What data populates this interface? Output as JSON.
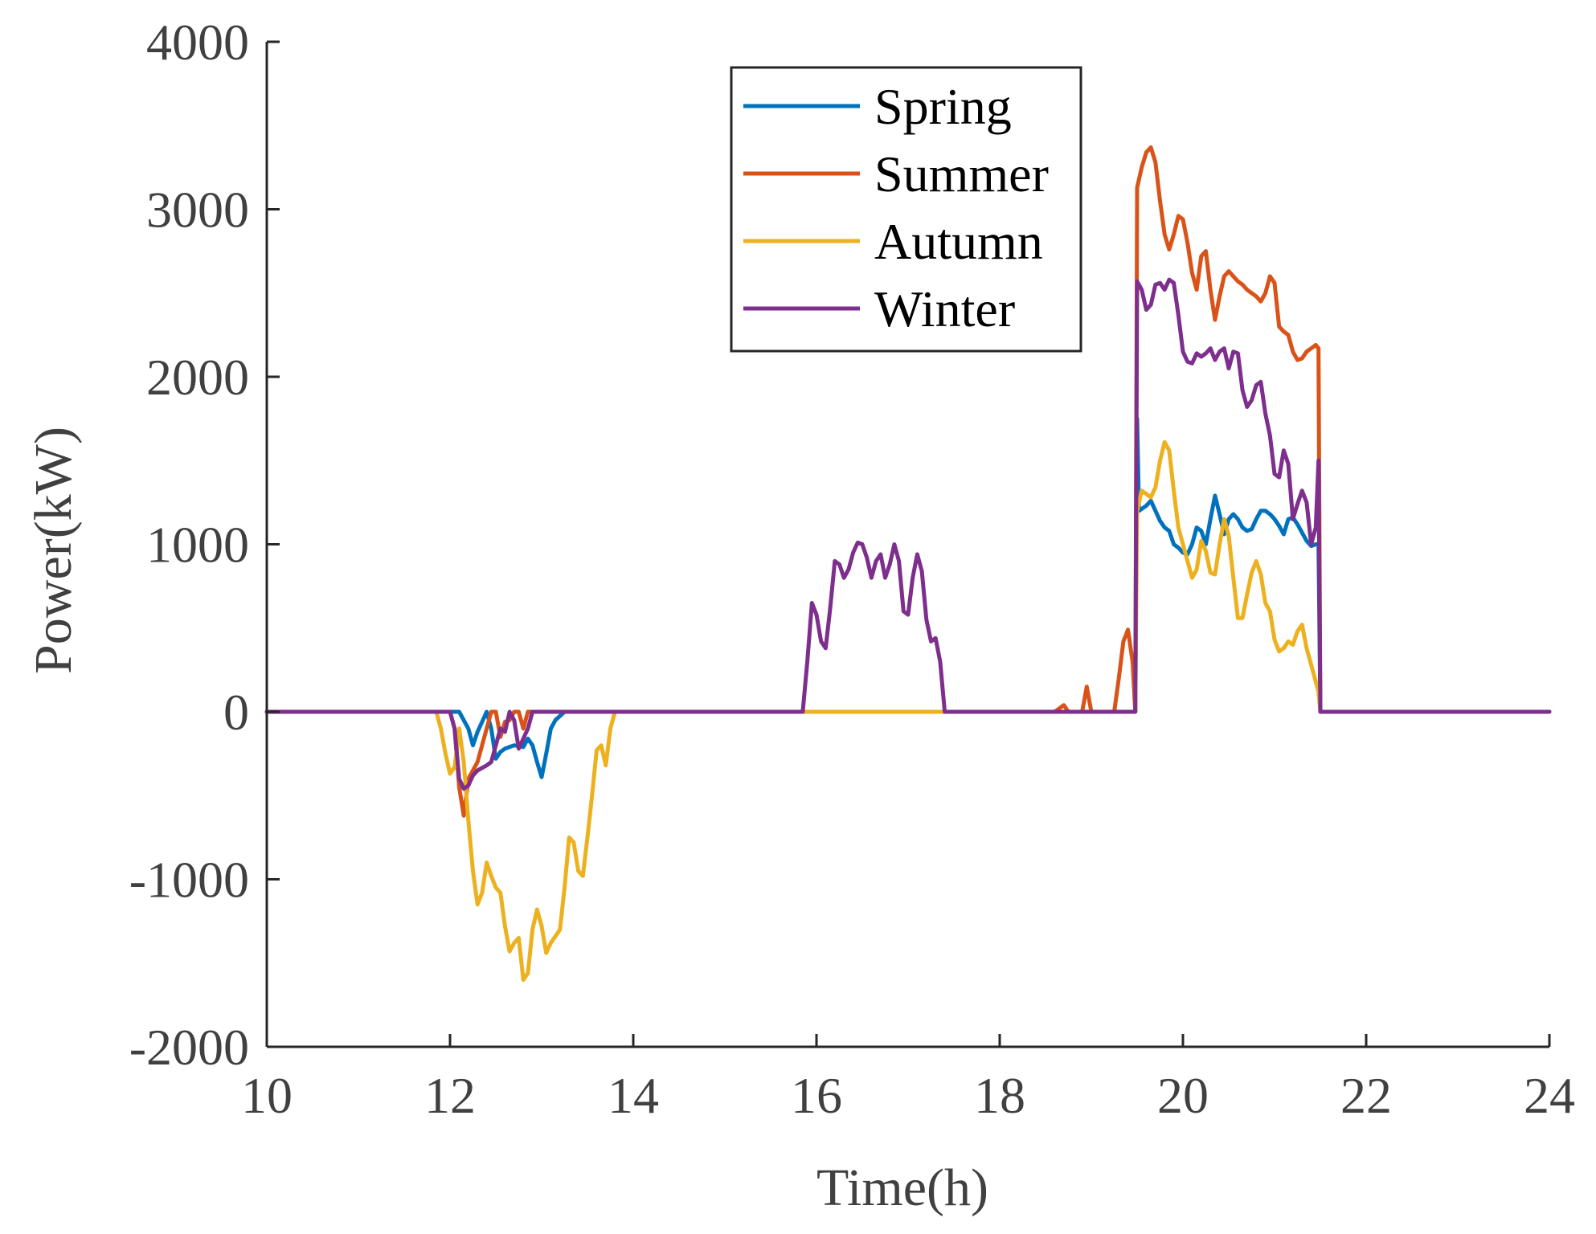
{
  "chart_data": {
    "type": "line",
    "xlabel": "Time(h)",
    "ylabel": "Power(kW)",
    "xlim": [
      10,
      24
    ],
    "ylim": [
      -2000,
      4000
    ],
    "xticks": [
      10,
      12,
      14,
      16,
      18,
      20,
      22,
      24
    ],
    "yticks": [
      -2000,
      -1000,
      0,
      1000,
      2000,
      3000,
      4000
    ],
    "grid": false,
    "legend_position": "top-right",
    "series": [
      {
        "name": "Spring",
        "color": "#0072BD",
        "points": [
          [
            10,
            0
          ],
          [
            12.0,
            0
          ],
          [
            12.1,
            0
          ],
          [
            12.2,
            -100
          ],
          [
            12.25,
            -200
          ],
          [
            12.3,
            -120
          ],
          [
            12.35,
            -60
          ],
          [
            12.4,
            0
          ],
          [
            12.45,
            -100
          ],
          [
            12.5,
            -280
          ],
          [
            12.55,
            -240
          ],
          [
            12.6,
            -220
          ],
          [
            12.7,
            -200
          ],
          [
            12.8,
            -210
          ],
          [
            12.85,
            -160
          ],
          [
            12.9,
            -200
          ],
          [
            12.95,
            -300
          ],
          [
            13.0,
            -390
          ],
          [
            13.05,
            -250
          ],
          [
            13.1,
            -100
          ],
          [
            13.15,
            -50
          ],
          [
            13.25,
            0
          ],
          [
            19.48,
            0
          ],
          [
            19.5,
            1750
          ],
          [
            19.52,
            1200
          ],
          [
            19.6,
            1230
          ],
          [
            19.65,
            1260
          ],
          [
            19.7,
            1200
          ],
          [
            19.75,
            1140
          ],
          [
            19.8,
            1100
          ],
          [
            19.85,
            1080
          ],
          [
            19.9,
            1000
          ],
          [
            19.95,
            980
          ],
          [
            20.0,
            950
          ],
          [
            20.05,
            940
          ],
          [
            20.1,
            1000
          ],
          [
            20.15,
            1100
          ],
          [
            20.2,
            1080
          ],
          [
            20.25,
            1000
          ],
          [
            20.3,
            1150
          ],
          [
            20.35,
            1290
          ],
          [
            20.4,
            1180
          ],
          [
            20.45,
            1060
          ],
          [
            20.5,
            1150
          ],
          [
            20.55,
            1180
          ],
          [
            20.6,
            1150
          ],
          [
            20.65,
            1100
          ],
          [
            20.7,
            1080
          ],
          [
            20.75,
            1090
          ],
          [
            20.8,
            1150
          ],
          [
            20.85,
            1200
          ],
          [
            20.9,
            1200
          ],
          [
            20.95,
            1180
          ],
          [
            21.0,
            1150
          ],
          [
            21.05,
            1110
          ],
          [
            21.1,
            1060
          ],
          [
            21.15,
            1150
          ],
          [
            21.2,
            1160
          ],
          [
            21.25,
            1120
          ],
          [
            21.3,
            1070
          ],
          [
            21.35,
            1020
          ],
          [
            21.4,
            990
          ],
          [
            21.45,
            1000
          ],
          [
            21.48,
            1000
          ],
          [
            21.5,
            0
          ],
          [
            24,
            0
          ]
        ]
      },
      {
        "name": "Summer",
        "color": "#D95319",
        "points": [
          [
            10,
            0
          ],
          [
            12.0,
            0
          ],
          [
            12.05,
            -100
          ],
          [
            12.1,
            -450
          ],
          [
            12.15,
            -620
          ],
          [
            12.2,
            -400
          ],
          [
            12.3,
            -300
          ],
          [
            12.4,
            -100
          ],
          [
            12.45,
            0
          ],
          [
            12.5,
            0
          ],
          [
            12.55,
            -150
          ],
          [
            12.6,
            -60
          ],
          [
            12.65,
            -50
          ],
          [
            12.7,
            0
          ],
          [
            12.75,
            0
          ],
          [
            12.8,
            -100
          ],
          [
            12.85,
            0
          ],
          [
            12.9,
            0
          ],
          [
            18.6,
            0
          ],
          [
            18.7,
            40
          ],
          [
            18.75,
            0
          ],
          [
            18.9,
            0
          ],
          [
            18.95,
            150
          ],
          [
            19.0,
            0
          ],
          [
            19.25,
            0
          ],
          [
            19.3,
            200
          ],
          [
            19.35,
            420
          ],
          [
            19.4,
            490
          ],
          [
            19.45,
            300
          ],
          [
            19.48,
            0
          ],
          [
            19.5,
            3130
          ],
          [
            19.55,
            3250
          ],
          [
            19.6,
            3340
          ],
          [
            19.65,
            3370
          ],
          [
            19.7,
            3280
          ],
          [
            19.75,
            3050
          ],
          [
            19.8,
            2850
          ],
          [
            19.85,
            2760
          ],
          [
            19.9,
            2850
          ],
          [
            19.95,
            2960
          ],
          [
            20.0,
            2940
          ],
          [
            20.05,
            2800
          ],
          [
            20.1,
            2620
          ],
          [
            20.15,
            2520
          ],
          [
            20.2,
            2720
          ],
          [
            20.25,
            2750
          ],
          [
            20.3,
            2520
          ],
          [
            20.35,
            2340
          ],
          [
            20.4,
            2480
          ],
          [
            20.45,
            2600
          ],
          [
            20.5,
            2630
          ],
          [
            20.55,
            2600
          ],
          [
            20.6,
            2570
          ],
          [
            20.65,
            2550
          ],
          [
            20.7,
            2520
          ],
          [
            20.75,
            2500
          ],
          [
            20.8,
            2480
          ],
          [
            20.85,
            2450
          ],
          [
            20.9,
            2500
          ],
          [
            20.95,
            2600
          ],
          [
            21.0,
            2560
          ],
          [
            21.05,
            2300
          ],
          [
            21.1,
            2270
          ],
          [
            21.15,
            2250
          ],
          [
            21.2,
            2150
          ],
          [
            21.25,
            2100
          ],
          [
            21.3,
            2110
          ],
          [
            21.35,
            2150
          ],
          [
            21.4,
            2170
          ],
          [
            21.45,
            2190
          ],
          [
            21.48,
            2170
          ],
          [
            21.5,
            0
          ],
          [
            24,
            0
          ]
        ]
      },
      {
        "name": "Autumn",
        "color": "#EDB120",
        "points": [
          [
            10,
            0
          ],
          [
            11.85,
            0
          ],
          [
            11.9,
            -100
          ],
          [
            11.95,
            -250
          ],
          [
            12.0,
            -370
          ],
          [
            12.05,
            -330
          ],
          [
            12.1,
            -100
          ],
          [
            12.15,
            -300
          ],
          [
            12.2,
            -650
          ],
          [
            12.25,
            -950
          ],
          [
            12.3,
            -1150
          ],
          [
            12.35,
            -1080
          ],
          [
            12.4,
            -900
          ],
          [
            12.45,
            -980
          ],
          [
            12.5,
            -1050
          ],
          [
            12.55,
            -1080
          ],
          [
            12.6,
            -1280
          ],
          [
            12.65,
            -1430
          ],
          [
            12.7,
            -1380
          ],
          [
            12.75,
            -1350
          ],
          [
            12.8,
            -1600
          ],
          [
            12.85,
            -1560
          ],
          [
            12.9,
            -1300
          ],
          [
            12.95,
            -1180
          ],
          [
            13.0,
            -1280
          ],
          [
            13.05,
            -1440
          ],
          [
            13.1,
            -1380
          ],
          [
            13.15,
            -1340
          ],
          [
            13.2,
            -1300
          ],
          [
            13.25,
            -1050
          ],
          [
            13.3,
            -750
          ],
          [
            13.35,
            -780
          ],
          [
            13.4,
            -950
          ],
          [
            13.45,
            -980
          ],
          [
            13.5,
            -750
          ],
          [
            13.55,
            -500
          ],
          [
            13.6,
            -230
          ],
          [
            13.65,
            -200
          ],
          [
            13.7,
            -320
          ],
          [
            13.75,
            -100
          ],
          [
            13.8,
            0
          ],
          [
            19.48,
            0
          ],
          [
            19.5,
            1200
          ],
          [
            19.55,
            1320
          ],
          [
            19.6,
            1300
          ],
          [
            19.65,
            1280
          ],
          [
            19.7,
            1340
          ],
          [
            19.75,
            1500
          ],
          [
            19.8,
            1610
          ],
          [
            19.85,
            1560
          ],
          [
            19.9,
            1320
          ],
          [
            19.95,
            1100
          ],
          [
            20.0,
            1000
          ],
          [
            20.05,
            900
          ],
          [
            20.1,
            800
          ],
          [
            20.15,
            850
          ],
          [
            20.2,
            1020
          ],
          [
            20.25,
            960
          ],
          [
            20.3,
            830
          ],
          [
            20.35,
            820
          ],
          [
            20.4,
            1000
          ],
          [
            20.45,
            1150
          ],
          [
            20.5,
            1050
          ],
          [
            20.55,
            800
          ],
          [
            20.6,
            560
          ],
          [
            20.65,
            560
          ],
          [
            20.7,
            700
          ],
          [
            20.75,
            830
          ],
          [
            20.8,
            900
          ],
          [
            20.85,
            820
          ],
          [
            20.9,
            650
          ],
          [
            20.95,
            600
          ],
          [
            21.0,
            430
          ],
          [
            21.05,
            360
          ],
          [
            21.1,
            380
          ],
          [
            21.15,
            420
          ],
          [
            21.2,
            400
          ],
          [
            21.25,
            480
          ],
          [
            21.3,
            520
          ],
          [
            21.35,
            380
          ],
          [
            21.4,
            280
          ],
          [
            21.45,
            180
          ],
          [
            21.48,
            120
          ],
          [
            21.5,
            0
          ],
          [
            24,
            0
          ]
        ]
      },
      {
        "name": "Winter",
        "color": "#7E2F8E",
        "points": [
          [
            10,
            0
          ],
          [
            12.0,
            0
          ],
          [
            12.05,
            -100
          ],
          [
            12.1,
            -400
          ],
          [
            12.15,
            -460
          ],
          [
            12.2,
            -440
          ],
          [
            12.25,
            -380
          ],
          [
            12.3,
            -350
          ],
          [
            12.4,
            -320
          ],
          [
            12.45,
            -300
          ],
          [
            12.5,
            -200
          ],
          [
            12.55,
            -100
          ],
          [
            12.6,
            -120
          ],
          [
            12.65,
            0
          ],
          [
            12.7,
            -50
          ],
          [
            12.75,
            -220
          ],
          [
            12.8,
            -160
          ],
          [
            12.85,
            -100
          ],
          [
            12.9,
            0
          ],
          [
            15.85,
            0
          ],
          [
            15.9,
            300
          ],
          [
            15.95,
            650
          ],
          [
            16.0,
            580
          ],
          [
            16.05,
            420
          ],
          [
            16.1,
            380
          ],
          [
            16.15,
            620
          ],
          [
            16.2,
            900
          ],
          [
            16.25,
            880
          ],
          [
            16.3,
            800
          ],
          [
            16.35,
            850
          ],
          [
            16.4,
            950
          ],
          [
            16.45,
            1010
          ],
          [
            16.5,
            1000
          ],
          [
            16.55,
            920
          ],
          [
            16.6,
            800
          ],
          [
            16.65,
            900
          ],
          [
            16.7,
            940
          ],
          [
            16.75,
            800
          ],
          [
            16.8,
            880
          ],
          [
            16.85,
            1000
          ],
          [
            16.9,
            900
          ],
          [
            16.95,
            600
          ],
          [
            17.0,
            580
          ],
          [
            17.05,
            800
          ],
          [
            17.1,
            940
          ],
          [
            17.15,
            840
          ],
          [
            17.2,
            550
          ],
          [
            17.25,
            420
          ],
          [
            17.3,
            440
          ],
          [
            17.35,
            300
          ],
          [
            17.4,
            0
          ],
          [
            19.48,
            0
          ],
          [
            19.5,
            2570
          ],
          [
            19.55,
            2520
          ],
          [
            19.6,
            2400
          ],
          [
            19.65,
            2430
          ],
          [
            19.7,
            2550
          ],
          [
            19.75,
            2560
          ],
          [
            19.8,
            2520
          ],
          [
            19.85,
            2580
          ],
          [
            19.9,
            2560
          ],
          [
            19.95,
            2370
          ],
          [
            20.0,
            2150
          ],
          [
            20.05,
            2090
          ],
          [
            20.1,
            2080
          ],
          [
            20.15,
            2140
          ],
          [
            20.2,
            2120
          ],
          [
            20.25,
            2140
          ],
          [
            20.3,
            2170
          ],
          [
            20.35,
            2100
          ],
          [
            20.4,
            2150
          ],
          [
            20.45,
            2170
          ],
          [
            20.5,
            2050
          ],
          [
            20.55,
            2150
          ],
          [
            20.6,
            2140
          ],
          [
            20.65,
            1920
          ],
          [
            20.7,
            1820
          ],
          [
            20.75,
            1860
          ],
          [
            20.8,
            1950
          ],
          [
            20.85,
            1970
          ],
          [
            20.9,
            1780
          ],
          [
            20.95,
            1650
          ],
          [
            21.0,
            1420
          ],
          [
            21.05,
            1400
          ],
          [
            21.1,
            1560
          ],
          [
            21.15,
            1480
          ],
          [
            21.2,
            1150
          ],
          [
            21.25,
            1240
          ],
          [
            21.3,
            1320
          ],
          [
            21.35,
            1250
          ],
          [
            21.4,
            1000
          ],
          [
            21.45,
            1100
          ],
          [
            21.48,
            1500
          ],
          [
            21.5,
            0
          ],
          [
            24,
            0
          ]
        ]
      }
    ]
  }
}
